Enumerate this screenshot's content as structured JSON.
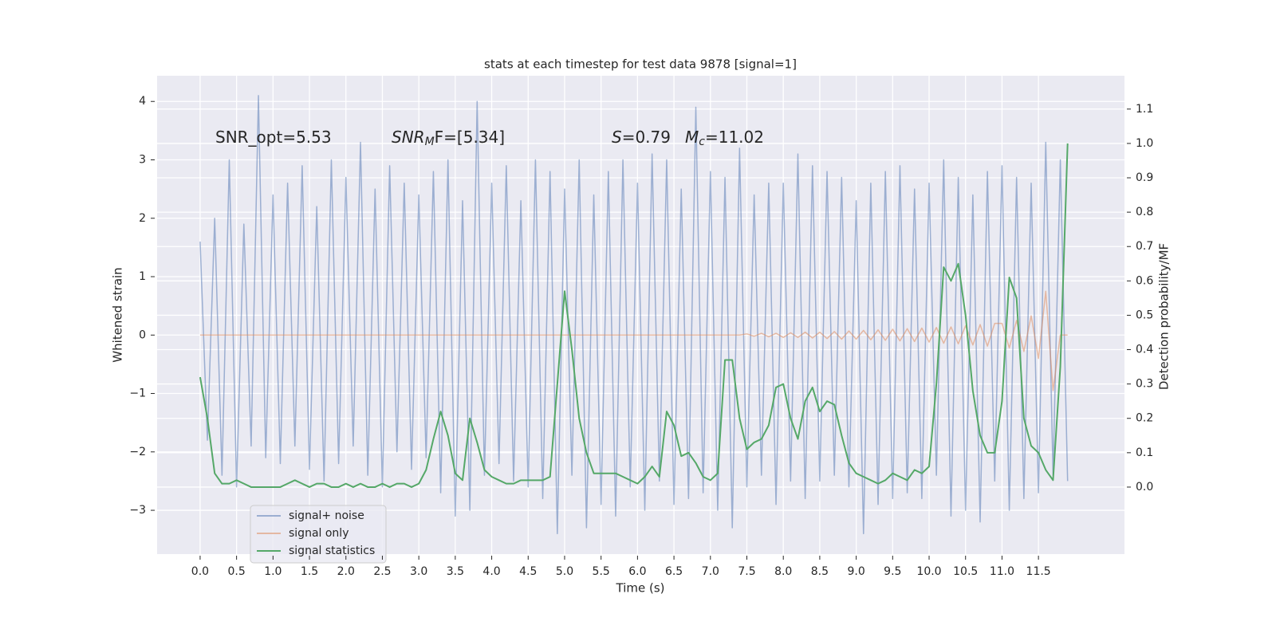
{
  "chart_data": {
    "type": "line",
    "title": "stats at each timestep for test data 9878 [signal=1]",
    "xlabel": "Time (s)",
    "ylabel": "Whitened strain",
    "y2label": "Detection probability/MF",
    "annotations": [
      {
        "text": "SNR_opt=5.53"
      },
      {
        "math": "SNR",
        "sub": "M",
        "text": "F=[5.34]"
      },
      {
        "math": "S",
        "text": "=0.79"
      },
      {
        "math": "M",
        "sub": "c",
        "text": "=11.02"
      }
    ],
    "x": [
      0.0,
      0.1,
      0.2,
      0.3,
      0.4,
      0.5,
      0.6,
      0.7,
      0.8,
      0.9,
      1.0,
      1.1,
      1.2,
      1.3,
      1.4,
      1.5,
      1.6,
      1.7,
      1.8,
      1.9,
      2.0,
      2.1,
      2.2,
      2.3,
      2.4,
      2.5,
      2.6,
      2.7,
      2.8,
      2.9,
      3.0,
      3.1,
      3.2,
      3.3,
      3.4,
      3.5,
      3.6,
      3.7,
      3.8,
      3.9,
      4.0,
      4.1,
      4.2,
      4.3,
      4.4,
      4.5,
      4.6,
      4.7,
      4.8,
      4.9,
      5.0,
      5.1,
      5.2,
      5.3,
      5.4,
      5.5,
      5.6,
      5.7,
      5.8,
      5.9,
      6.0,
      6.1,
      6.2,
      6.3,
      6.4,
      6.5,
      6.6,
      6.7,
      6.8,
      6.9,
      7.0,
      7.1,
      7.2,
      7.3,
      7.4,
      7.5,
      7.6,
      7.7,
      7.8,
      7.9,
      8.0,
      8.1,
      8.2,
      8.3,
      8.4,
      8.5,
      8.6,
      8.7,
      8.8,
      8.9,
      9.0,
      9.1,
      9.2,
      9.3,
      9.4,
      9.5,
      9.6,
      9.7,
      9.8,
      9.9,
      10.0,
      10.1,
      10.2,
      10.3,
      10.4,
      10.5,
      10.6,
      10.7,
      10.8,
      10.9,
      11.0,
      11.1,
      11.2,
      11.3,
      11.4,
      11.5,
      11.6,
      11.7,
      11.8,
      11.9
    ],
    "series": [
      {
        "name": "signal+ noise",
        "color": "#4c72b0",
        "alpha": 0.5,
        "axis": "y",
        "values": [
          1.6,
          -1.8,
          2.0,
          -2.4,
          3.0,
          -2.6,
          1.9,
          -1.9,
          4.1,
          -2.1,
          2.4,
          -2.2,
          2.6,
          -1.9,
          2.9,
          -2.3,
          2.2,
          -2.5,
          3.0,
          -2.2,
          2.7,
          -1.9,
          3.3,
          -2.4,
          2.5,
          -2.6,
          2.9,
          -2.0,
          2.6,
          -2.3,
          2.4,
          -2.1,
          2.8,
          -2.7,
          3.0,
          -3.1,
          2.3,
          -3.0,
          4.0,
          -2.4,
          2.6,
          -2.2,
          2.9,
          -2.5,
          2.3,
          -2.6,
          3.0,
          -2.8,
          2.8,
          -3.4,
          2.5,
          -2.4,
          3.0,
          -3.3,
          2.4,
          -2.9,
          2.8,
          -3.1,
          3.0,
          -2.6,
          2.6,
          -3.0,
          3.1,
          -2.5,
          3.0,
          -2.9,
          2.5,
          -2.8,
          3.9,
          -2.7,
          2.8,
          -3.0,
          2.7,
          -3.3,
          3.2,
          -2.6,
          2.4,
          -2.4,
          2.6,
          -2.9,
          2.6,
          -2.5,
          3.1,
          -2.8,
          2.9,
          -2.5,
          2.8,
          -2.4,
          2.7,
          -2.6,
          2.3,
          -3.4,
          2.6,
          -2.9,
          2.8,
          -2.8,
          2.9,
          -2.7,
          2.5,
          -2.8,
          2.6,
          -2.4,
          3.0,
          -3.1,
          2.7,
          -3.0,
          2.4,
          -3.2,
          2.8,
          -2.5,
          2.9,
          -3.0,
          2.7,
          -2.8,
          2.6,
          -2.7,
          3.3,
          -2.4,
          3.0,
          -2.5
        ]
      },
      {
        "name": "signal only",
        "color": "#dd8452",
        "alpha": 0.5,
        "axis": "y",
        "values": [
          0,
          0,
          0,
          0,
          0,
          0,
          0,
          0,
          0,
          0,
          0,
          0,
          0,
          0,
          0,
          0,
          0,
          0,
          0,
          0,
          0,
          0,
          0,
          0,
          0,
          0,
          0,
          0,
          0,
          0,
          0,
          0,
          0,
          0,
          0,
          0,
          0,
          0,
          0,
          0,
          0,
          0,
          0,
          0,
          0,
          0,
          0,
          0,
          0,
          0,
          0,
          0,
          0,
          0,
          0,
          0,
          0,
          0,
          0,
          0,
          0,
          0,
          0,
          0,
          0,
          0,
          0,
          0,
          0,
          0,
          0,
          0,
          0,
          0,
          0,
          0.02,
          -0.02,
          0.03,
          -0.03,
          0.03,
          -0.04,
          0.04,
          -0.04,
          0.05,
          -0.05,
          0.05,
          -0.06,
          0.06,
          -0.07,
          0.07,
          -0.07,
          0.08,
          -0.08,
          0.09,
          -0.09,
          0.1,
          -0.1,
          0.11,
          -0.11,
          0.12,
          -0.12,
          0.13,
          -0.14,
          0.14,
          -0.15,
          0.16,
          -0.17,
          0.18,
          -0.19,
          0.2,
          0.2,
          -0.22,
          0.25,
          -0.28,
          0.33,
          -0.4,
          0.75,
          -0.95,
          0,
          0
        ]
      },
      {
        "name": "signal statistics",
        "color": "#55a868",
        "alpha": 1,
        "axis": "y2",
        "values": [
          0.32,
          0.2,
          0.04,
          0.01,
          0.01,
          0.02,
          0.01,
          0.0,
          0.0,
          0.0,
          0.0,
          0.0,
          0.01,
          0.02,
          0.01,
          0.0,
          0.01,
          0.01,
          0.0,
          0.0,
          0.01,
          0.0,
          0.01,
          0.0,
          0.0,
          0.01,
          0.0,
          0.01,
          0.01,
          0.0,
          0.01,
          0.05,
          0.14,
          0.22,
          0.15,
          0.04,
          0.02,
          0.2,
          0.13,
          0.05,
          0.03,
          0.02,
          0.01,
          0.01,
          0.02,
          0.02,
          0.02,
          0.02,
          0.03,
          0.3,
          0.57,
          0.4,
          0.2,
          0.1,
          0.04,
          0.04,
          0.04,
          0.04,
          0.03,
          0.02,
          0.01,
          0.03,
          0.06,
          0.03,
          0.22,
          0.18,
          0.09,
          0.1,
          0.07,
          0.03,
          0.02,
          0.04,
          0.37,
          0.37,
          0.2,
          0.11,
          0.13,
          0.14,
          0.18,
          0.29,
          0.3,
          0.2,
          0.14,
          0.25,
          0.29,
          0.22,
          0.25,
          0.24,
          0.15,
          0.07,
          0.04,
          0.03,
          0.02,
          0.01,
          0.02,
          0.04,
          0.03,
          0.02,
          0.05,
          0.04,
          0.06,
          0.3,
          0.64,
          0.6,
          0.65,
          0.5,
          0.28,
          0.15,
          0.1,
          0.1,
          0.25,
          0.61,
          0.55,
          0.2,
          0.12,
          0.1,
          0.05,
          0.02,
          0.35,
          1.0
        ]
      }
    ],
    "xlim": [
      -0.59,
      12.68
    ],
    "ylim": [
      -3.75,
      4.44
    ],
    "y2lim": [
      -0.195,
      1.197
    ],
    "xticks": [
      {
        "value": 0,
        "label": "0.0"
      },
      {
        "value": 0.5,
        "label": "0.5"
      },
      {
        "value": 1,
        "label": "1.0"
      },
      {
        "value": 1.5,
        "label": "1.5"
      },
      {
        "value": 2,
        "label": "2.0"
      },
      {
        "value": 2.5,
        "label": "2.5"
      },
      {
        "value": 3,
        "label": "3.0"
      },
      {
        "value": 3.5,
        "label": "3.5"
      },
      {
        "value": 4,
        "label": "4.0"
      },
      {
        "value": 4.5,
        "label": "4.5"
      },
      {
        "value": 5,
        "label": "5.0"
      },
      {
        "value": 5.5,
        "label": "5.5"
      },
      {
        "value": 6,
        "label": "6.0"
      },
      {
        "value": 6.5,
        "label": "6.5"
      },
      {
        "value": 7,
        "label": "7.0"
      },
      {
        "value": 7.5,
        "label": "7.5"
      },
      {
        "value": 8,
        "label": "8.0"
      },
      {
        "value": 8.5,
        "label": "8.5"
      },
      {
        "value": 9,
        "label": "9.0"
      },
      {
        "value": 9.5,
        "label": "9.5"
      },
      {
        "value": 10,
        "label": "10.0"
      },
      {
        "value": 10.5,
        "label": "10.5"
      },
      {
        "value": 11,
        "label": "11.0"
      },
      {
        "value": 11.5,
        "label": "11.5"
      }
    ],
    "yticks": [
      {
        "value": -3,
        "label": "−3"
      },
      {
        "value": -2,
        "label": "−2"
      },
      {
        "value": -1,
        "label": "−1"
      },
      0,
      1,
      2,
      3,
      4
    ],
    "y2ticks": [
      {
        "value": 0,
        "label": "0.0"
      },
      {
        "value": 0.1,
        "label": "0.1"
      },
      {
        "value": 0.2,
        "label": "0.2"
      },
      {
        "value": 0.3,
        "label": "0.3"
      },
      {
        "value": 0.4,
        "label": "0.4"
      },
      {
        "value": 0.5,
        "label": "0.5"
      },
      {
        "value": 0.6,
        "label": "0.6"
      },
      {
        "value": 0.7,
        "label": "0.7"
      },
      {
        "value": 0.8,
        "label": "0.8"
      },
      {
        "value": 0.9,
        "label": "0.9"
      },
      {
        "value": 1,
        "label": "1.0"
      },
      {
        "value": 1.1,
        "label": "1.1"
      }
    ],
    "grid": true,
    "background": "#eaeaf2",
    "legend": "lower left"
  }
}
